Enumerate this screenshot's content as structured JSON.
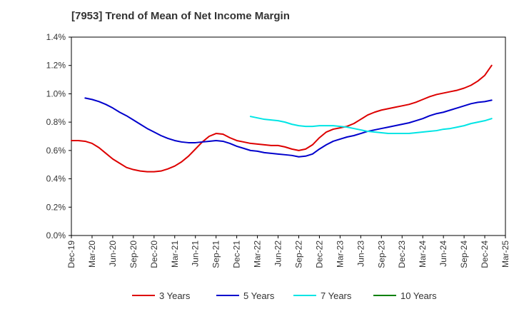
{
  "chart_data": {
    "type": "line",
    "title": "[7953]  Trend of Mean of Net Income Margin",
    "xlabel": "",
    "ylabel": "",
    "x_ticks": [
      "Dec-19",
      "Mar-20",
      "Jun-20",
      "Sep-20",
      "Dec-20",
      "Mar-21",
      "Jun-21",
      "Sep-21",
      "Dec-21",
      "Mar-22",
      "Jun-22",
      "Sep-22",
      "Dec-22",
      "Mar-23",
      "Jun-23",
      "Sep-23",
      "Dec-23",
      "Mar-24",
      "Jun-24",
      "Sep-24",
      "Dec-24",
      "Mar-25"
    ],
    "y_ticks": [
      "0.0%",
      "0.2%",
      "0.4%",
      "0.6%",
      "0.8%",
      "1.0%",
      "1.2%",
      "1.4%"
    ],
    "ylim": [
      0,
      1.4
    ],
    "y_unit": "%",
    "grid": true,
    "legend_position": "bottom",
    "series": [
      {
        "name": "3 Years",
        "color": "#dd0000",
        "points": [
          [
            "Dec-19",
            0.67
          ],
          [
            "Jan-20",
            0.67
          ],
          [
            "Feb-20",
            0.665
          ],
          [
            "Mar-20",
            0.65
          ],
          [
            "Apr-20",
            0.62
          ],
          [
            "May-20",
            0.58
          ],
          [
            "Jun-20",
            0.54
          ],
          [
            "Jul-20",
            0.51
          ],
          [
            "Aug-20",
            0.48
          ],
          [
            "Sep-20",
            0.465
          ],
          [
            "Oct-20",
            0.455
          ],
          [
            "Nov-20",
            0.45
          ],
          [
            "Dec-20",
            0.45
          ],
          [
            "Jan-21",
            0.455
          ],
          [
            "Feb-21",
            0.47
          ],
          [
            "Mar-21",
            0.49
          ],
          [
            "Apr-21",
            0.52
          ],
          [
            "May-21",
            0.56
          ],
          [
            "Jun-21",
            0.61
          ],
          [
            "Jul-21",
            0.66
          ],
          [
            "Aug-21",
            0.7
          ],
          [
            "Sep-21",
            0.72
          ],
          [
            "Oct-21",
            0.715
          ],
          [
            "Nov-21",
            0.69
          ],
          [
            "Dec-21",
            0.67
          ],
          [
            "Jan-22",
            0.66
          ],
          [
            "Feb-22",
            0.65
          ],
          [
            "Mar-22",
            0.645
          ],
          [
            "Apr-22",
            0.64
          ],
          [
            "May-22",
            0.635
          ],
          [
            "Jun-22",
            0.635
          ],
          [
            "Jul-22",
            0.625
          ],
          [
            "Aug-22",
            0.61
          ],
          [
            "Sep-22",
            0.6
          ],
          [
            "Oct-22",
            0.61
          ],
          [
            "Nov-22",
            0.64
          ],
          [
            "Dec-22",
            0.69
          ],
          [
            "Jan-23",
            0.73
          ],
          [
            "Feb-23",
            0.75
          ],
          [
            "Mar-23",
            0.76
          ],
          [
            "Apr-23",
            0.77
          ],
          [
            "May-23",
            0.79
          ],
          [
            "Jun-23",
            0.82
          ],
          [
            "Jul-23",
            0.85
          ],
          [
            "Aug-23",
            0.87
          ],
          [
            "Sep-23",
            0.885
          ],
          [
            "Oct-23",
            0.895
          ],
          [
            "Nov-23",
            0.905
          ],
          [
            "Dec-23",
            0.915
          ],
          [
            "Jan-24",
            0.925
          ],
          [
            "Feb-24",
            0.94
          ],
          [
            "Mar-24",
            0.96
          ],
          [
            "Apr-24",
            0.98
          ],
          [
            "May-24",
            0.995
          ],
          [
            "Jun-24",
            1.005
          ],
          [
            "Jul-24",
            1.015
          ],
          [
            "Aug-24",
            1.025
          ],
          [
            "Sep-24",
            1.04
          ],
          [
            "Oct-24",
            1.06
          ],
          [
            "Nov-24",
            1.09
          ],
          [
            "Dec-24",
            1.13
          ],
          [
            "Jan-25",
            1.2
          ]
        ]
      },
      {
        "name": "5 Years",
        "color": "#0000cc",
        "points": [
          [
            "Feb-20",
            0.97
          ],
          [
            "Mar-20",
            0.96
          ],
          [
            "Apr-20",
            0.945
          ],
          [
            "May-20",
            0.925
          ],
          [
            "Jun-20",
            0.9
          ],
          [
            "Jul-20",
            0.87
          ],
          [
            "Aug-20",
            0.845
          ],
          [
            "Sep-20",
            0.815
          ],
          [
            "Oct-20",
            0.785
          ],
          [
            "Nov-20",
            0.755
          ],
          [
            "Dec-20",
            0.73
          ],
          [
            "Jan-21",
            0.705
          ],
          [
            "Feb-21",
            0.685
          ],
          [
            "Mar-21",
            0.67
          ],
          [
            "Apr-21",
            0.66
          ],
          [
            "May-21",
            0.655
          ],
          [
            "Jun-21",
            0.655
          ],
          [
            "Jul-21",
            0.66
          ],
          [
            "Aug-21",
            0.665
          ],
          [
            "Sep-21",
            0.67
          ],
          [
            "Oct-21",
            0.665
          ],
          [
            "Nov-21",
            0.65
          ],
          [
            "Dec-21",
            0.63
          ],
          [
            "Jan-22",
            0.615
          ],
          [
            "Feb-22",
            0.6
          ],
          [
            "Mar-22",
            0.595
          ],
          [
            "Apr-22",
            0.585
          ],
          [
            "May-22",
            0.58
          ],
          [
            "Jun-22",
            0.575
          ],
          [
            "Jul-22",
            0.57
          ],
          [
            "Aug-22",
            0.565
          ],
          [
            "Sep-22",
            0.555
          ],
          [
            "Oct-22",
            0.56
          ],
          [
            "Nov-22",
            0.575
          ],
          [
            "Dec-22",
            0.61
          ],
          [
            "Jan-23",
            0.64
          ],
          [
            "Feb-23",
            0.665
          ],
          [
            "Mar-23",
            0.68
          ],
          [
            "Apr-23",
            0.695
          ],
          [
            "May-23",
            0.705
          ],
          [
            "Jun-23",
            0.72
          ],
          [
            "Jul-23",
            0.735
          ],
          [
            "Aug-23",
            0.745
          ],
          [
            "Sep-23",
            0.755
          ],
          [
            "Oct-23",
            0.765
          ],
          [
            "Nov-23",
            0.775
          ],
          [
            "Dec-23",
            0.785
          ],
          [
            "Jan-24",
            0.795
          ],
          [
            "Feb-24",
            0.81
          ],
          [
            "Mar-24",
            0.825
          ],
          [
            "Apr-24",
            0.845
          ],
          [
            "May-24",
            0.86
          ],
          [
            "Jun-24",
            0.87
          ],
          [
            "Jul-24",
            0.885
          ],
          [
            "Aug-24",
            0.9
          ],
          [
            "Sep-24",
            0.915
          ],
          [
            "Oct-24",
            0.93
          ],
          [
            "Nov-24",
            0.94
          ],
          [
            "Dec-24",
            0.945
          ],
          [
            "Jan-25",
            0.955
          ]
        ]
      },
      {
        "name": "7 Years",
        "color": "#00e5e5",
        "points": [
          [
            "Feb-22",
            0.84
          ],
          [
            "Mar-22",
            0.83
          ],
          [
            "Apr-22",
            0.82
          ],
          [
            "May-22",
            0.815
          ],
          [
            "Jun-22",
            0.81
          ],
          [
            "Jul-22",
            0.8
          ],
          [
            "Aug-22",
            0.785
          ],
          [
            "Sep-22",
            0.775
          ],
          [
            "Oct-22",
            0.77
          ],
          [
            "Nov-22",
            0.77
          ],
          [
            "Dec-22",
            0.775
          ],
          [
            "Jan-23",
            0.775
          ],
          [
            "Feb-23",
            0.775
          ],
          [
            "Mar-23",
            0.77
          ],
          [
            "Apr-23",
            0.765
          ],
          [
            "May-23",
            0.755
          ],
          [
            "Jun-23",
            0.745
          ],
          [
            "Jul-23",
            0.735
          ],
          [
            "Aug-23",
            0.73
          ],
          [
            "Sep-23",
            0.725
          ],
          [
            "Oct-23",
            0.72
          ],
          [
            "Nov-23",
            0.72
          ],
          [
            "Dec-23",
            0.72
          ],
          [
            "Jan-24",
            0.72
          ],
          [
            "Feb-24",
            0.725
          ],
          [
            "Mar-24",
            0.73
          ],
          [
            "Apr-24",
            0.735
          ],
          [
            "May-24",
            0.74
          ],
          [
            "Jun-24",
            0.75
          ],
          [
            "Jul-24",
            0.755
          ],
          [
            "Aug-24",
            0.765
          ],
          [
            "Sep-24",
            0.775
          ],
          [
            "Oct-24",
            0.79
          ],
          [
            "Nov-24",
            0.8
          ],
          [
            "Dec-24",
            0.81
          ],
          [
            "Jan-25",
            0.825
          ]
        ]
      },
      {
        "name": "10 Years",
        "color": "#008000",
        "points": []
      }
    ]
  }
}
